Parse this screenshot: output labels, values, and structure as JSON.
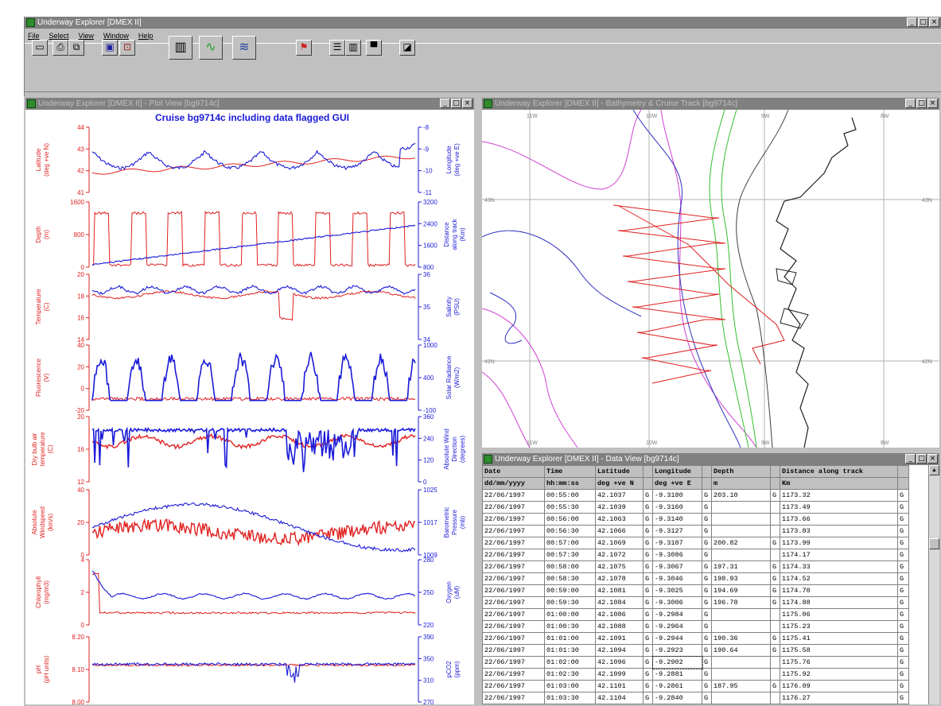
{
  "main_window": {
    "title": "Underway Explorer [DMEX II]",
    "menu": [
      "File",
      "Select",
      "View",
      "Window",
      "Help"
    ]
  },
  "toolbar": {
    "icons": [
      "new-icon",
      "print-icon",
      "copy-icon",
      "save-icon",
      "open-icon",
      "grid-icon",
      "plot-icon",
      "section-icon",
      "flag-icon",
      "list-icon",
      "columns-icon",
      "table-icon",
      "close-file-icon"
    ]
  },
  "plot_window": {
    "title": "Underway Explorer [DMEX II] - Plot View [bg9714c]",
    "plot_title": "Cruise bg9714c including data flagged GUI",
    "panels": [
      {
        "left_label": "Latitude\n(deg +ve N)",
        "right_label": "Longitude\n(deg +ve E)",
        "left_ticks": [
          "44",
          "43",
          "42",
          "41"
        ],
        "right_ticks": [
          "-8",
          "-9",
          "-10",
          "-11"
        ]
      },
      {
        "left_label": "Depth\n(m)",
        "right_label": "Distance\nalong track\n(Km)",
        "left_ticks": [
          "1600",
          "800",
          "0"
        ],
        "right_ticks": [
          "3200",
          "2400",
          "1600",
          "800"
        ]
      },
      {
        "left_label": "Temperature\n(C)",
        "right_label": "Salinity\n(PSU)",
        "left_ticks": [
          "20",
          "18",
          "16",
          "14"
        ],
        "right_ticks": [
          "36",
          "35",
          "34"
        ]
      },
      {
        "left_label": "Fluorescence\n(V)",
        "right_label": "Solar Radiance\n(W/m2)",
        "left_ticks": [
          "40",
          "20",
          "0",
          "-20"
        ],
        "right_ticks": [
          "1000",
          "400",
          "-100"
        ]
      },
      {
        "left_label": "Dry bulb air\ntemperature\n(C)",
        "right_label": "Absolute Wind\nDirection\n(degrees)",
        "left_ticks": [
          "20",
          "16",
          "12"
        ],
        "right_ticks": [
          "360",
          "240",
          "120",
          "0"
        ]
      },
      {
        "left_label": "Absolute\nWindspeed\n(km/s)",
        "right_label": "Barometric\nPressure\n(mb)",
        "left_ticks": [
          "40",
          "20",
          "0"
        ],
        "right_ticks": [
          "1025",
          "1017",
          "1009"
        ]
      },
      {
        "left_label": "Chlorophyll\n(mg/m3)",
        "right_label": "Oxygen\n(uM)",
        "left_ticks": [
          "4",
          "2",
          "0"
        ],
        "right_ticks": [
          "280",
          "250",
          "220"
        ]
      },
      {
        "left_label": "pH\n(pH units)",
        "right_label": "pCO2\n(ppm)",
        "left_ticks": [
          "8.20",
          "8.10",
          "8.00"
        ],
        "right_ticks": [
          "390",
          "350",
          "310",
          "270"
        ]
      }
    ]
  },
  "map_window": {
    "title": "Underway Explorer [DMEX II] - Bathymetry & Cruise Track [bg9714c]",
    "top_lon_labels": [
      "11W",
      "10W",
      "9W",
      "8W"
    ],
    "bottom_lon_labels": [
      "11W",
      "10W",
      "9W",
      "8W"
    ],
    "lat_labels_left": [
      "43N",
      "42N"
    ],
    "lat_labels_right": [
      "43N",
      "42N"
    ]
  },
  "data_window": {
    "title": "Underway Explorer [DMEX II] - Data View [bg9714c]",
    "headers": [
      "Date",
      "Time",
      "Latitude",
      "",
      "Longitude",
      "",
      "Depth",
      "",
      "Distance along track",
      ""
    ],
    "units": [
      "dd/mm/yyyy",
      "hh:mm:ss",
      "deg +ve N",
      "",
      "deg +ve E",
      "",
      "m",
      "",
      "Km",
      ""
    ],
    "rows": [
      [
        "22/06/1997",
        "00:55:00",
        "42.1037",
        "G",
        "-9.3180",
        "G",
        "203.10",
        "G",
        "1173.32",
        "G"
      ],
      [
        "22/06/1997",
        "00:55:30",
        "42.1039",
        "G",
        "-9.3160",
        "G",
        "",
        "",
        "1173.49",
        "G"
      ],
      [
        "22/06/1997",
        "00:56:00",
        "42.1063",
        "G",
        "-9.3140",
        "G",
        "",
        "",
        "1173.66",
        "G"
      ],
      [
        "22/06/1997",
        "00:56:30",
        "42.1066",
        "G",
        "-9.3127",
        "G",
        "",
        "",
        "1173.83",
        "G"
      ],
      [
        "22/06/1997",
        "00:57:00",
        "42.1069",
        "G",
        "-9.3107",
        "G",
        "200.82",
        "G",
        "1173.99",
        "G"
      ],
      [
        "22/06/1997",
        "00:57:30",
        "42.1072",
        "G",
        "-9.3086",
        "G",
        "",
        "",
        "1174.17",
        "G"
      ],
      [
        "22/06/1997",
        "00:58:00",
        "42.1075",
        "G",
        "-9.3067",
        "G",
        "197.31",
        "G",
        "1174.33",
        "G"
      ],
      [
        "22/06/1997",
        "00:58:30",
        "42.1078",
        "G",
        "-9.3046",
        "G",
        "198.93",
        "G",
        "1174.52",
        "G"
      ],
      [
        "22/06/1997",
        "00:59:00",
        "42.1081",
        "G",
        "-9.3025",
        "G",
        "194.69",
        "G",
        "1174.70",
        "G"
      ],
      [
        "22/06/1997",
        "00:59:30",
        "42.1084",
        "G",
        "-9.3006",
        "G",
        "196.78",
        "G",
        "1174.88",
        "G"
      ],
      [
        "22/06/1997",
        "01:00:00",
        "42.1086",
        "G",
        "-9.2984",
        "G",
        "",
        "",
        "1175.06",
        "G"
      ],
      [
        "22/06/1997",
        "01:00:30",
        "42.1088",
        "G",
        "-9.2964",
        "G",
        "",
        "",
        "1175.23",
        "G"
      ],
      [
        "22/06/1997",
        "01:01:00",
        "42.1091",
        "G",
        "-9.2944",
        "G",
        "190.36",
        "G",
        "1175.41",
        "G"
      ],
      [
        "22/06/1997",
        "01:01:30",
        "42.1094",
        "G",
        "-9.2923",
        "G",
        "190.64",
        "G",
        "1175.58",
        "G"
      ],
      [
        "22/06/1997",
        "01:02:00",
        "42.1096",
        "G",
        "-9.2902",
        "G",
        "",
        "",
        "1175.76",
        "G"
      ],
      [
        "22/06/1997",
        "01:02:30",
        "42.1099",
        "G",
        "-9.2881",
        "G",
        "",
        "",
        "1175.92",
        "G"
      ],
      [
        "22/06/1997",
        "01:03:00",
        "42.1101",
        "G",
        "-9.2861",
        "G",
        "187.95",
        "G",
        "1176.09",
        "G"
      ],
      [
        "22/06/1997",
        "01:03:30",
        "42.1104",
        "G",
        "-9.2840",
        "G",
        "",
        "",
        "1176.27",
        "G"
      ]
    ]
  },
  "colors": {
    "left_series": "#e02020",
    "right_series": "#1a1ad8",
    "title_blue": "#1a1ad8",
    "window_gray": "#c0c0c0",
    "titlebar_gray": "#808080",
    "contour_magenta": "#d040d0",
    "contour_blue": "#3030c0",
    "contour_green": "#30c030",
    "coast_black": "#202020",
    "track_red": "#e02020"
  }
}
